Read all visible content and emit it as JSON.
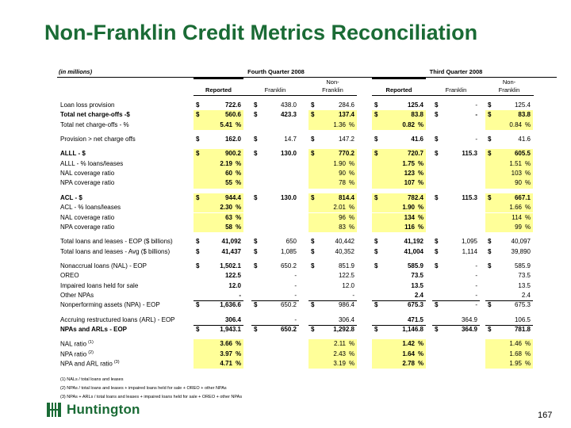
{
  "title": "Non-Franklin Credit Metrics Reconciliation",
  "units_note": "(in millions)",
  "periods": [
    "Fourth Quarter 2008",
    "Third Quarter 2008"
  ],
  "columns": [
    "Reported",
    "Franklin",
    "Non-Franklin",
    "Reported",
    "Franklin",
    "Non-Franklin"
  ],
  "rows": [
    {
      "label": "Loan loss provision",
      "bold": false,
      "cells": [
        {
          "d": "$",
          "v": "722.6"
        },
        {
          "d": "$",
          "v": "438.0"
        },
        {
          "d": "$",
          "v": "284.6"
        },
        {
          "d": "$",
          "v": "125.4"
        },
        {
          "d": "$",
          "v": "-"
        },
        {
          "d": "$",
          "v": "125.4"
        }
      ]
    },
    {
      "label": "Total net charge-offs -$",
      "bold": true,
      "cells": [
        {
          "d": "$",
          "v": "560.6",
          "hl": true
        },
        {
          "d": "$",
          "v": "423.3"
        },
        {
          "d": "$",
          "v": "137.4",
          "hl": true
        },
        {
          "d": "$",
          "v": "83.8",
          "hl": true
        },
        {
          "d": "$",
          "v": "-"
        },
        {
          "d": "$",
          "v": "83.8",
          "hl": true
        }
      ]
    },
    {
      "label": "Total net charge-offs - %",
      "bold": false,
      "cells": [
        {
          "v": "5.41",
          "u": "%",
          "hl": true
        },
        {},
        {
          "v": "1.36",
          "u": "%",
          "hl": true
        },
        {
          "v": "0.82",
          "u": "%",
          "hl": true
        },
        {},
        {
          "v": "0.84",
          "u": "%",
          "hl": true
        }
      ]
    },
    {
      "label": "Provision > net charge offs",
      "bold": false,
      "gap": true,
      "cells": [
        {
          "d": "$",
          "v": "162.0"
        },
        {
          "d": "$",
          "v": "14.7"
        },
        {
          "d": "$",
          "v": "147.2"
        },
        {
          "d": "$",
          "v": "41.6"
        },
        {
          "d": "$",
          "v": "-"
        },
        {
          "d": "$",
          "v": "41.6"
        }
      ]
    },
    {
      "label": "ALLL - $",
      "bold": true,
      "gap": true,
      "cells": [
        {
          "d": "$",
          "v": "900.2",
          "hl": true
        },
        {
          "d": "$",
          "v": "130.0"
        },
        {
          "d": "$",
          "v": "770.2",
          "hl": true
        },
        {
          "d": "$",
          "v": "720.7",
          "hl": true
        },
        {
          "d": "$",
          "v": "115.3"
        },
        {
          "d": "$",
          "v": "605.5",
          "hl": true
        }
      ]
    },
    {
      "label": "ALLL - % loans/leases",
      "bold": false,
      "cells": [
        {
          "v": "2.19",
          "u": "%",
          "hl": true
        },
        {},
        {
          "v": "1.90",
          "u": "%",
          "hl": true
        },
        {
          "v": "1.75",
          "u": "%",
          "hl": true
        },
        {},
        {
          "v": "1.51",
          "u": "%",
          "hl": true
        }
      ]
    },
    {
      "label": "NAL coverage ratio",
      "bold": false,
      "cells": [
        {
          "v": "60",
          "u": "%",
          "hl": true
        },
        {},
        {
          "v": "90",
          "u": "%",
          "hl": true
        },
        {
          "v": "123",
          "u": "%",
          "hl": true
        },
        {},
        {
          "v": "103",
          "u": "%",
          "hl": true
        }
      ]
    },
    {
      "label": "NPA coverage ratio",
      "bold": false,
      "cells": [
        {
          "v": "55",
          "u": "%",
          "hl": true
        },
        {},
        {
          "v": "78",
          "u": "%",
          "hl": true
        },
        {
          "v": "107",
          "u": "%",
          "hl": true
        },
        {},
        {
          "v": "90",
          "u": "%",
          "hl": true
        }
      ]
    },
    {
      "label": "ACL - $",
      "bold": true,
      "gap": true,
      "cells": [
        {
          "d": "$",
          "v": "944.4",
          "hl": true
        },
        {
          "d": "$",
          "v": "130.0"
        },
        {
          "d": "$",
          "v": "814.4",
          "hl": true
        },
        {
          "d": "$",
          "v": "782.4",
          "hl": true
        },
        {
          "d": "$",
          "v": "115.3"
        },
        {
          "d": "$",
          "v": "667.1",
          "hl": true
        }
      ]
    },
    {
      "label": "ACL - % loans/leases",
      "bold": false,
      "cells": [
        {
          "v": "2.30",
          "u": "%",
          "hl": true
        },
        {},
        {
          "v": "2.01",
          "u": "%",
          "hl": true
        },
        {
          "v": "1.90",
          "u": "%",
          "hl": true
        },
        {},
        {
          "v": "1.66",
          "u": "%",
          "hl": true
        }
      ]
    },
    {
      "label": "NAL coverage ratio",
      "bold": false,
      "cells": [
        {
          "v": "63",
          "u": "%",
          "hl": true
        },
        {},
        {
          "v": "96",
          "u": "%",
          "hl": true
        },
        {
          "v": "134",
          "u": "%",
          "hl": true
        },
        {},
        {
          "v": "114",
          "u": "%",
          "hl": true
        }
      ]
    },
    {
      "label": "NPA coverage ratio",
      "bold": false,
      "cells": [
        {
          "v": "58",
          "u": "%",
          "hl": true
        },
        {},
        {
          "v": "83",
          "u": "%",
          "hl": true
        },
        {
          "v": "116",
          "u": "%",
          "hl": true
        },
        {},
        {
          "v": "99",
          "u": "%",
          "hl": true
        }
      ]
    },
    {
      "label": "Total loans and leases - EOP ($ billions)",
      "bold": false,
      "gap": true,
      "cells": [
        {
          "d": "$",
          "v": "41,092"
        },
        {
          "d": "$",
          "v": "650"
        },
        {
          "d": "$",
          "v": "40,442"
        },
        {
          "d": "$",
          "v": "41,192"
        },
        {
          "d": "$",
          "v": "1,095"
        },
        {
          "d": "$",
          "v": "40,097"
        }
      ]
    },
    {
      "label": "Total loans and leases - Avg ($ billions)",
      "bold": false,
      "cells": [
        {
          "d": "$",
          "v": "41,437"
        },
        {
          "d": "$",
          "v": "1,085"
        },
        {
          "d": "$",
          "v": "40,352"
        },
        {
          "d": "$",
          "v": "41,004"
        },
        {
          "d": "$",
          "v": "1,114"
        },
        {
          "d": "$",
          "v": "39,890"
        }
      ]
    },
    {
      "label": "Nonaccrual loans (NAL) - EOP",
      "bold": false,
      "gap": true,
      "cells": [
        {
          "d": "$",
          "v": "1,502.1"
        },
        {
          "d": "$",
          "v": "650.2"
        },
        {
          "d": "$",
          "v": "851.9"
        },
        {
          "d": "$",
          "v": "585.9"
        },
        {
          "d": "$",
          "v": "-"
        },
        {
          "d": "$",
          "v": "585.9"
        }
      ]
    },
    {
      "label": "OREO",
      "bold": false,
      "cells": [
        {
          "v": "122.5"
        },
        {
          "v": "-"
        },
        {
          "v": "122.5"
        },
        {
          "v": "73.5"
        },
        {
          "v": "-"
        },
        {
          "v": "73.5"
        }
      ]
    },
    {
      "label": "Impaired loans held for sale",
      "bold": false,
      "cells": [
        {
          "v": "12.0"
        },
        {
          "v": "-"
        },
        {
          "v": "12.0"
        },
        {
          "v": "13.5"
        },
        {
          "v": "-"
        },
        {
          "v": "13.5"
        }
      ]
    },
    {
      "label": "Other NPAs",
      "bold": false,
      "cells": [
        {
          "v": "-"
        },
        {
          "v": "-"
        },
        {
          "v": "-"
        },
        {
          "v": "2.4"
        },
        {
          "v": "-"
        },
        {
          "v": "2.4"
        }
      ]
    },
    {
      "label": "Nonperforming assets (NPA) - EOP",
      "bold": false,
      "line_above": true,
      "cells": [
        {
          "d": "$",
          "v": "1,636.6"
        },
        {
          "d": "$",
          "v": "650.2"
        },
        {
          "d": "$",
          "v": "986.4"
        },
        {
          "d": "$",
          "v": "675.3"
        },
        {
          "d": "$",
          "v": "-"
        },
        {
          "d": "$",
          "v": "675.3"
        }
      ]
    },
    {
      "label": "Accruing restructured loans (ARL) - EOP",
      "bold": false,
      "gap": true,
      "cells": [
        {
          "v": "306.4"
        },
        {
          "v": "-"
        },
        {
          "v": "306.4"
        },
        {
          "v": "471.5"
        },
        {
          "v": "364.9"
        },
        {
          "v": "106.5"
        }
      ]
    },
    {
      "label": "NPAs and ARLs - EOP",
      "bold": true,
      "line_above": true,
      "cells": [
        {
          "d": "$",
          "v": "1,943.1"
        },
        {
          "d": "$",
          "v": "650.2"
        },
        {
          "d": "$",
          "v": "1,292.8"
        },
        {
          "d": "$",
          "v": "1,146.8"
        },
        {
          "d": "$",
          "v": "364.9"
        },
        {
          "d": "$",
          "v": "781.8"
        }
      ]
    },
    {
      "label": "NAL ratio",
      "sup": "(1)",
      "bold": false,
      "gap": true,
      "cells": [
        {
          "v": "3.66",
          "u": "%",
          "hl": true
        },
        {},
        {
          "v": "2.11",
          "u": "%",
          "hl": true
        },
        {
          "v": "1.42",
          "u": "%",
          "hl": true
        },
        {},
        {
          "v": "1.46",
          "u": "%",
          "hl": true
        }
      ]
    },
    {
      "label": "NPA ratio",
      "sup": "(2)",
      "bold": false,
      "cells": [
        {
          "v": "3.97",
          "u": "%",
          "hl": true
        },
        {},
        {
          "v": "2.43",
          "u": "%",
          "hl": true
        },
        {
          "v": "1.64",
          "u": "%",
          "hl": true
        },
        {},
        {
          "v": "1.68",
          "u": "%",
          "hl": true
        }
      ]
    },
    {
      "label": "NPA and ARL ratio",
      "sup": "(3)",
      "bold": false,
      "cells": [
        {
          "v": "4.71",
          "u": "%",
          "hl": true
        },
        {},
        {
          "v": "3.19",
          "u": "%",
          "hl": true
        },
        {
          "v": "2.78",
          "u": "%",
          "hl": true
        },
        {},
        {
          "v": "1.95",
          "u": "%",
          "hl": true
        }
      ]
    }
  ],
  "footnotes": [
    "(1) NALs / total loans and leases",
    "(2) NPAs / total loans and leases + impaired loans held for sale + OREO + other NPAs",
    "(3) NPAs + ARLs / total loans and leases + impaired loans held for sale + OREO + other NPAs"
  ],
  "logo_name": "Huntington",
  "page_number": "167",
  "colors": {
    "title": "#1a6b35",
    "highlight": "#ffff99",
    "logo": "#1a6b35"
  }
}
